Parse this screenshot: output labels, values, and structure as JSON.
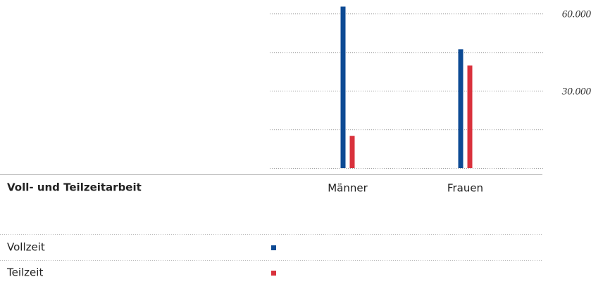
{
  "chart_data": {
    "type": "bar",
    "title": "Voll- und Teilzeitarbeit",
    "categories": [
      "Männer",
      "Frauen"
    ],
    "series": [
      {
        "name": "Vollzeit",
        "color": "#0d4a94",
        "values": [
          62700,
          46100
        ]
      },
      {
        "name": "Teilzeit",
        "color": "#d9313c",
        "values": [
          12500,
          39800
        ]
      }
    ],
    "ylim": [
      0,
      65000
    ],
    "yticks": [
      {
        "value": 30000,
        "label": "30.000"
      },
      {
        "value": 60000,
        "label": "60.000"
      }
    ],
    "minor_yticks": [
      0,
      15000,
      45000
    ],
    "grid": true
  }
}
